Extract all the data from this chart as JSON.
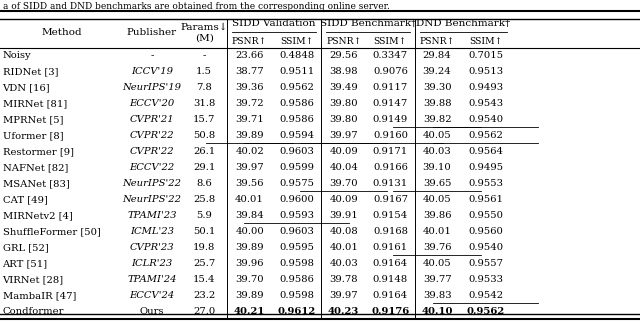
{
  "title_text": "a of SIDD and DND benchmarks are obtained from the corresponding online server.",
  "rows": [
    [
      "Noisy",
      "-",
      "-",
      "23.66",
      "0.4848",
      "29.56",
      "0.3347",
      "29.84",
      "0.7015"
    ],
    [
      "RIDNet [3]",
      "ICCV'19",
      "1.5",
      "38.77",
      "0.9511",
      "38.98",
      "0.9076",
      "39.24",
      "0.9513"
    ],
    [
      "VDN [16]",
      "NeurIPS'19",
      "7.8",
      "39.36",
      "0.9562",
      "39.49",
      "0.9117",
      "39.30",
      "0.9493"
    ],
    [
      "MIRNet [81]",
      "ECCV'20",
      "31.8",
      "39.72",
      "0.9586",
      "39.80",
      "0.9147",
      "39.88",
      "0.9543"
    ],
    [
      "MPRNet [5]",
      "CVPR'21",
      "15.7",
      "39.71",
      "0.9586",
      "39.80",
      "0.9149",
      "39.82",
      "0.9540"
    ],
    [
      "Uformer [8]",
      "CVPR'22",
      "50.8",
      "39.89",
      "0.9594",
      "39.97",
      "0.9160",
      "40.05",
      "0.9562"
    ],
    [
      "Restormer [9]",
      "CVPR'22",
      "26.1",
      "40.02",
      "0.9603",
      "40.09",
      "0.9171",
      "40.03",
      "0.9564"
    ],
    [
      "NAFNet [82]",
      "ECCV'22",
      "29.1",
      "39.97",
      "0.9599",
      "40.04",
      "0.9166",
      "39.10",
      "0.9495"
    ],
    [
      "MSANet [83]",
      "NeurIPS'22",
      "8.6",
      "39.56",
      "0.9575",
      "39.70",
      "0.9131",
      "39.65",
      "0.9553"
    ],
    [
      "CAT [49]",
      "NeurIPS'22",
      "25.8",
      "40.01",
      "0.9600",
      "40.09",
      "0.9167",
      "40.05",
      "0.9561"
    ],
    [
      "MIRNetv2 [4]",
      "TPAMI'23",
      "5.9",
      "39.84",
      "0.9593",
      "39.91",
      "0.9154",
      "39.86",
      "0.9550"
    ],
    [
      "ShuffleFormer [50]",
      "ICML'23",
      "50.1",
      "40.00",
      "0.9603",
      "40.08",
      "0.9168",
      "40.01",
      "0.9560"
    ],
    [
      "GRL [52]",
      "CVPR'23",
      "19.8",
      "39.89",
      "0.9595",
      "40.01",
      "0.9161",
      "39.76",
      "0.9540"
    ],
    [
      "ART [51]",
      "ICLR'23",
      "25.7",
      "39.96",
      "0.9598",
      "40.03",
      "0.9164",
      "40.05",
      "0.9557"
    ],
    [
      "VIRNet [28]",
      "TPAMI'24",
      "15.4",
      "39.70",
      "0.9586",
      "39.78",
      "0.9148",
      "39.77",
      "0.9533"
    ],
    [
      "MambaIR [47]",
      "ECCV'24",
      "23.2",
      "39.89",
      "0.9598",
      "39.97",
      "0.9164",
      "39.83",
      "0.9542"
    ],
    [
      "Condformer",
      "Ours",
      "27.0",
      "40.21",
      "0.9612",
      "40.23",
      "0.9176",
      "40.10",
      "0.9562"
    ]
  ],
  "italic_publishers": [
    "ICCV'19",
    "NeurIPS'19",
    "ECCV'20",
    "CVPR'21",
    "CVPR'22",
    "ECCV'22",
    "NeurIPS'22",
    "TPAMI'23",
    "ICML'23",
    "CVPR'23",
    "ICLR'23",
    "TPAMI'24",
    "ECCV'24"
  ],
  "underline_cells": [
    [
      5,
      7
    ],
    [
      5,
      8
    ],
    [
      6,
      3
    ],
    [
      6,
      4
    ],
    [
      6,
      5
    ],
    [
      6,
      6
    ],
    [
      6,
      8
    ],
    [
      9,
      5
    ],
    [
      9,
      7
    ],
    [
      11,
      4
    ],
    [
      13,
      7
    ],
    [
      16,
      8
    ]
  ],
  "bg_color": "#ffffff",
  "font_size": 7.2,
  "header_font_size": 7.5
}
